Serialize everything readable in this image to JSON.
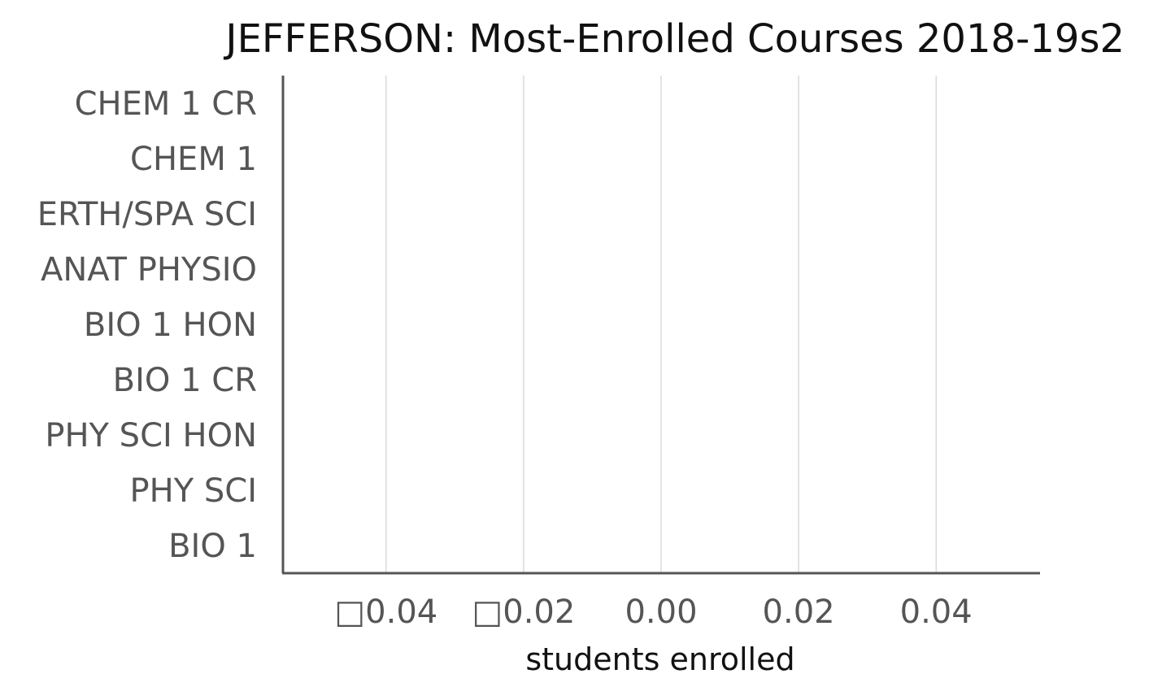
{
  "chart_data": {
    "type": "bar",
    "orientation": "horizontal",
    "title": "JEFFERSON: Most-Enrolled Courses 2018-19s2",
    "xlabel": "students enrolled",
    "ylabel": "",
    "categories": [
      "CHEM 1 CR",
      "CHEM 1",
      "ERTH/SPA SCI",
      "ANAT PHYSIO",
      "BIO 1 HON",
      "BIO 1 CR",
      "PHY SCI HON",
      "PHY SCI",
      "BIO 1"
    ],
    "values": [
      0,
      0,
      0,
      0,
      0,
      0,
      0,
      0,
      0
    ],
    "xlim": [
      -0.055,
      0.055
    ],
    "xticks": [
      -0.04,
      -0.02,
      0.0,
      0.02,
      0.04
    ],
    "xtick_labels": [
      "□0.04",
      "□0.02",
      "0.00",
      "0.02",
      "0.04"
    ],
    "grid": "vertical",
    "legend": "none",
    "colors": {
      "axis": "#555555",
      "grid": "#c8c8c8",
      "text": "#555555",
      "title": "#111111"
    }
  }
}
